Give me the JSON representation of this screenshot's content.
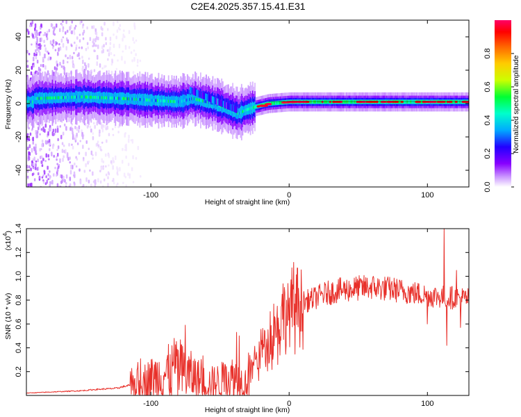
{
  "figure_title": "C2E4.2025.357.15.41.E31",
  "chart_data": [
    {
      "type": "heatmap",
      "panel": "spectrogram",
      "xlabel": "Height of straight line (km)",
      "ylabel": "Frequency (Hz)",
      "xlim": [
        -190,
        130
      ],
      "ylim": [
        -50,
        50
      ],
      "x_ticks": [
        -100,
        0,
        100
      ],
      "y_ticks": [
        -40,
        -20,
        0,
        20,
        40
      ],
      "colorbar": {
        "label": "Normalized spectral amplitude",
        "range": [
          0.0,
          1.0
        ],
        "ticks": [
          0.0,
          0.2,
          0.4,
          0.6,
          0.8
        ],
        "colormap": [
          "#ffffff",
          "#cc99ff",
          "#8800ff",
          "#2200ff",
          "#00aaff",
          "#00ffcc",
          "#00ff33",
          "#ccff00",
          "#ffcc00",
          "#ff6600",
          "#ff0000",
          "#ff0066"
        ]
      },
      "ridge_center_hz": [
        {
          "x": -185,
          "f": 3
        },
        {
          "x": -150,
          "f": 4
        },
        {
          "x": -120,
          "f": 3
        },
        {
          "x": -100,
          "f": 2
        },
        {
          "x": -80,
          "f": 1
        },
        {
          "x": -70,
          "f": 3
        },
        {
          "x": -55,
          "f": 0
        },
        {
          "x": -45,
          "f": -3
        },
        {
          "x": -37,
          "f": -6
        },
        {
          "x": -32,
          "f": -4
        },
        {
          "x": -25,
          "f": -2
        },
        {
          "x": -15,
          "f": 0
        },
        {
          "x": 0,
          "f": 1
        },
        {
          "x": 30,
          "f": 1
        },
        {
          "x": 60,
          "f": 1
        },
        {
          "x": 100,
          "f": 1
        },
        {
          "x": 130,
          "f": 1
        }
      ],
      "noise_region_x": [
        -190,
        -112
      ]
    },
    {
      "type": "line",
      "panel": "snr",
      "xlabel": "Height of straight line (km)",
      "ylabel": "SNR (10 * v/v)",
      "multiplier_label": "(x10",
      "multiplier_exp": "4",
      "multiplier_close": ")",
      "xlim": [
        -190,
        130
      ],
      "ylim": [
        0,
        1.4
      ],
      "x_ticks": [
        -100,
        0,
        100
      ],
      "y_ticks": [
        0.2,
        0.4,
        0.6,
        0.8,
        1.0,
        1.2,
        1.4
      ],
      "series": [
        {
          "name": "SNR",
          "color": "#e8302a",
          "envelope": [
            {
              "x": -190,
              "y": 0.02
            },
            {
              "x": -170,
              "y": 0.03
            },
            {
              "x": -150,
              "y": 0.04
            },
            {
              "x": -140,
              "y": 0.05
            },
            {
              "x": -125,
              "y": 0.06
            },
            {
              "x": -110,
              "y": 0.1
            },
            {
              "x": -100,
              "y": 0.14
            },
            {
              "x": -90,
              "y": 0.18
            },
            {
              "x": -82,
              "y": 0.2
            },
            {
              "x": -75,
              "y": 0.18
            },
            {
              "x": -68,
              "y": 0.15
            },
            {
              "x": -60,
              "y": 0.1
            },
            {
              "x": -50,
              "y": 0.12
            },
            {
              "x": -40,
              "y": 0.15
            },
            {
              "x": -32,
              "y": 0.1
            },
            {
              "x": -27,
              "y": 0.22
            },
            {
              "x": -20,
              "y": 0.38
            },
            {
              "x": -12,
              "y": 0.52
            },
            {
              "x": -5,
              "y": 0.64
            },
            {
              "x": 0,
              "y": 0.7
            },
            {
              "x": 8,
              "y": 0.78
            },
            {
              "x": 15,
              "y": 0.8
            },
            {
              "x": 25,
              "y": 0.85
            },
            {
              "x": 35,
              "y": 0.88
            },
            {
              "x": 50,
              "y": 0.9
            },
            {
              "x": 60,
              "y": 0.91
            },
            {
              "x": 75,
              "y": 0.89
            },
            {
              "x": 90,
              "y": 0.86
            },
            {
              "x": 100,
              "y": 0.84
            },
            {
              "x": 110,
              "y": 0.83
            },
            {
              "x": 120,
              "y": 0.82
            },
            {
              "x": 130,
              "y": 0.81
            }
          ],
          "peaks": [
            {
              "x": -75,
              "y": 0.59
            },
            {
              "x": -83,
              "y": 0.48
            },
            {
              "x": -38,
              "y": 0.53
            },
            {
              "x": -36,
              "y": 0.5
            },
            {
              "x": -5,
              "y": 0.85
            },
            {
              "x": 6,
              "y": 1.07
            },
            {
              "x": 112,
              "y": 1.4
            },
            {
              "x": 121,
              "y": 1.05
            }
          ],
          "dips": [
            {
              "x": 114,
              "y": 0.42
            },
            {
              "x": 100,
              "y": 0.6
            },
            {
              "x": 124,
              "y": 0.57
            }
          ]
        }
      ]
    }
  ]
}
